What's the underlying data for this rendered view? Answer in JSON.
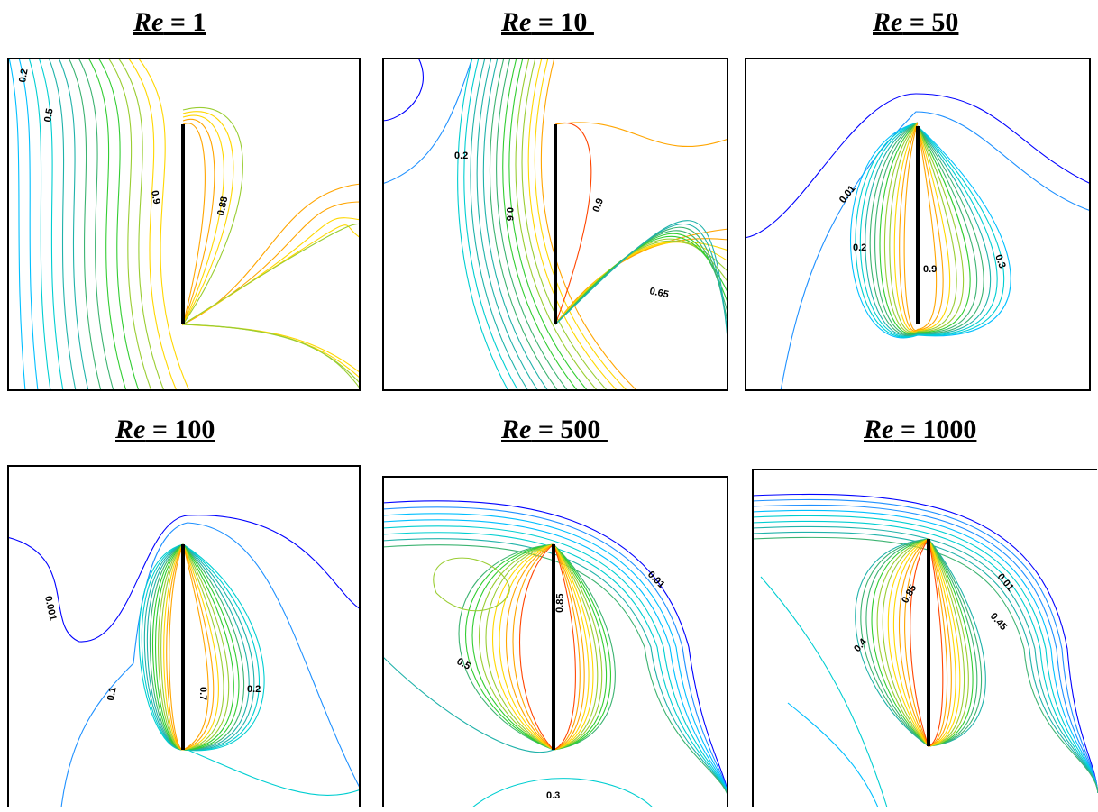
{
  "figure": {
    "panels": [
      {
        "id": "re1",
        "title_prefix": "Re",
        "title_suffix": " = 1",
        "labels": [
          "0.2",
          "0.5",
          "0.9",
          "0.88"
        ]
      },
      {
        "id": "re10",
        "title_prefix": "Re",
        "title_suffix": " = 10 ",
        "labels": [
          "0.2",
          "0.6",
          "0.9",
          "0.65"
        ]
      },
      {
        "id": "re50",
        "title_prefix": "Re",
        "title_suffix": " = 50",
        "labels": [
          "0.01",
          "0.2",
          "0.9",
          "0.3"
        ]
      },
      {
        "id": "re100",
        "title_prefix": "Re",
        "title_suffix": " = 100",
        "labels": [
          "0.001",
          "0.1",
          "0.7",
          "0.2"
        ]
      },
      {
        "id": "re500",
        "title_prefix": "Re",
        "title_suffix": " = 500 ",
        "labels": [
          "0.01",
          "0.85",
          "0.5",
          "0.3"
        ]
      },
      {
        "id": "re1000",
        "title_prefix": "Re",
        "title_suffix": " = 1000",
        "labels": [
          "0.01",
          "0.85",
          "0.4",
          "0.45"
        ]
      }
    ],
    "colormap": [
      "#00008b",
      "#0000ff",
      "#1e90ff",
      "#00bfff",
      "#00ced1",
      "#20b2aa",
      "#3cb371",
      "#32cd32",
      "#9acd32",
      "#ffd700",
      "#ffa500",
      "#ff4500",
      "#dc143c"
    ]
  }
}
